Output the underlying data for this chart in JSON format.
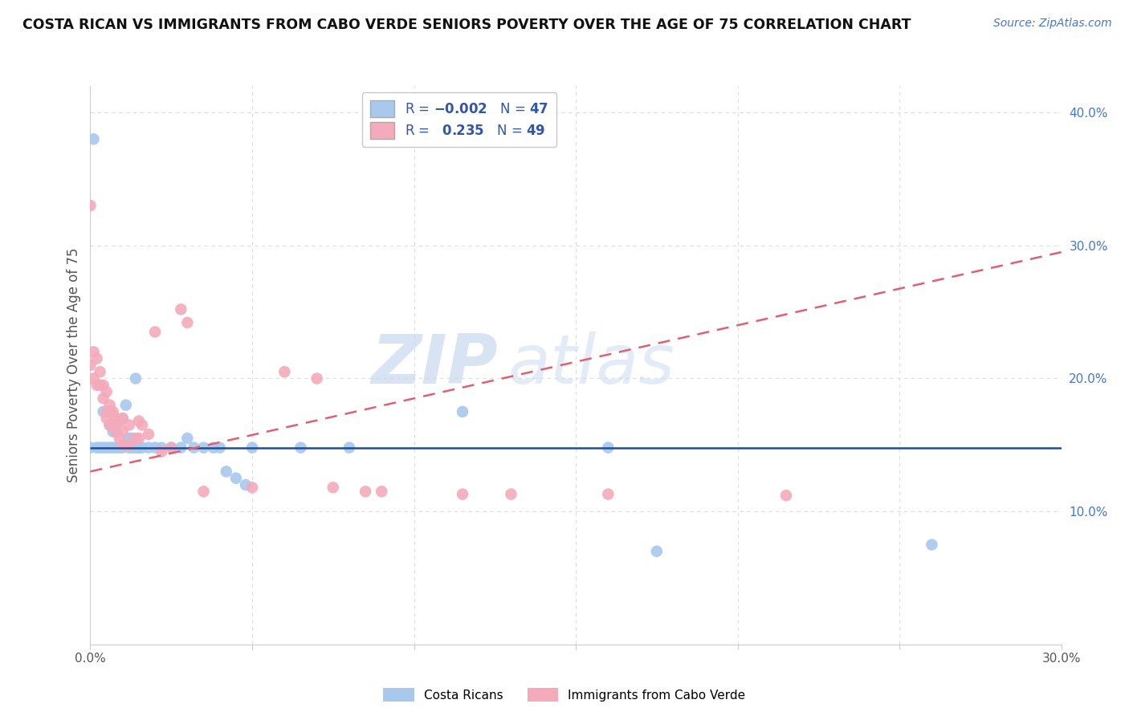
{
  "title": "COSTA RICAN VS IMMIGRANTS FROM CABO VERDE SENIORS POVERTY OVER THE AGE OF 75 CORRELATION CHART",
  "source": "Source: ZipAtlas.com",
  "ylabel": "Seniors Poverty Over the Age of 75",
  "xlim": [
    0.0,
    0.3
  ],
  "ylim": [
    0.0,
    0.42
  ],
  "ytick_positions_right": [
    0.1,
    0.2,
    0.3,
    0.4
  ],
  "color_blue": "#A8C8EE",
  "color_pink": "#F4AABB",
  "line_color_blue": "#1A4F9C",
  "line_color_pink": "#E06070",
  "watermark_zip": "ZIP",
  "watermark_atlas": "atlas",
  "background_color": "#FFFFFF",
  "grid_color": "#DDDDDD",
  "blue_line_y": 0.148,
  "pink_line_x0": 0.0,
  "pink_line_y0": 0.13,
  "pink_line_x1": 0.3,
  "pink_line_y1": 0.295,
  "blue_scatter": [
    [
      0.001,
      0.38
    ],
    [
      0.0,
      0.148
    ],
    [
      0.002,
      0.148
    ],
    [
      0.003,
      0.148
    ],
    [
      0.004,
      0.148
    ],
    [
      0.004,
      0.175
    ],
    [
      0.005,
      0.148
    ],
    [
      0.006,
      0.148
    ],
    [
      0.006,
      0.165
    ],
    [
      0.007,
      0.148
    ],
    [
      0.007,
      0.16
    ],
    [
      0.008,
      0.148
    ],
    [
      0.008,
      0.165
    ],
    [
      0.009,
      0.148
    ],
    [
      0.01,
      0.148
    ],
    [
      0.01,
      0.17
    ],
    [
      0.011,
      0.18
    ],
    [
      0.012,
      0.148
    ],
    [
      0.012,
      0.155
    ],
    [
      0.013,
      0.148
    ],
    [
      0.013,
      0.155
    ],
    [
      0.014,
      0.148
    ],
    [
      0.014,
      0.2
    ],
    [
      0.015,
      0.148
    ],
    [
      0.015,
      0.148
    ],
    [
      0.015,
      0.148
    ],
    [
      0.016,
      0.148
    ],
    [
      0.018,
      0.148
    ],
    [
      0.02,
      0.148
    ],
    [
      0.022,
      0.148
    ],
    [
      0.025,
      0.148
    ],
    [
      0.028,
      0.148
    ],
    [
      0.03,
      0.155
    ],
    [
      0.032,
      0.148
    ],
    [
      0.035,
      0.148
    ],
    [
      0.038,
      0.148
    ],
    [
      0.04,
      0.148
    ],
    [
      0.042,
      0.13
    ],
    [
      0.045,
      0.125
    ],
    [
      0.048,
      0.12
    ],
    [
      0.05,
      0.148
    ],
    [
      0.065,
      0.148
    ],
    [
      0.08,
      0.148
    ],
    [
      0.115,
      0.175
    ],
    [
      0.16,
      0.148
    ],
    [
      0.175,
      0.07
    ],
    [
      0.26,
      0.075
    ]
  ],
  "pink_scatter": [
    [
      0.0,
      0.33
    ],
    [
      0.0,
      0.21
    ],
    [
      0.001,
      0.22
    ],
    [
      0.001,
      0.2
    ],
    [
      0.002,
      0.215
    ],
    [
      0.002,
      0.195
    ],
    [
      0.003,
      0.205
    ],
    [
      0.003,
      0.195
    ],
    [
      0.004,
      0.195
    ],
    [
      0.004,
      0.185
    ],
    [
      0.005,
      0.19
    ],
    [
      0.005,
      0.175
    ],
    [
      0.005,
      0.17
    ],
    [
      0.006,
      0.18
    ],
    [
      0.006,
      0.175
    ],
    [
      0.006,
      0.165
    ],
    [
      0.007,
      0.175
    ],
    [
      0.007,
      0.165
    ],
    [
      0.008,
      0.17
    ],
    [
      0.008,
      0.16
    ],
    [
      0.009,
      0.168
    ],
    [
      0.009,
      0.155
    ],
    [
      0.01,
      0.17
    ],
    [
      0.01,
      0.16
    ],
    [
      0.01,
      0.15
    ],
    [
      0.012,
      0.165
    ],
    [
      0.012,
      0.15
    ],
    [
      0.014,
      0.155
    ],
    [
      0.015,
      0.168
    ],
    [
      0.015,
      0.155
    ],
    [
      0.016,
      0.165
    ],
    [
      0.018,
      0.158
    ],
    [
      0.02,
      0.235
    ],
    [
      0.022,
      0.145
    ],
    [
      0.025,
      0.148
    ],
    [
      0.028,
      0.252
    ],
    [
      0.03,
      0.242
    ],
    [
      0.035,
      0.115
    ],
    [
      0.05,
      0.118
    ],
    [
      0.06,
      0.205
    ],
    [
      0.07,
      0.2
    ],
    [
      0.075,
      0.118
    ],
    [
      0.085,
      0.115
    ],
    [
      0.09,
      0.115
    ],
    [
      0.115,
      0.113
    ],
    [
      0.13,
      0.113
    ],
    [
      0.16,
      0.113
    ],
    [
      0.215,
      0.112
    ]
  ]
}
